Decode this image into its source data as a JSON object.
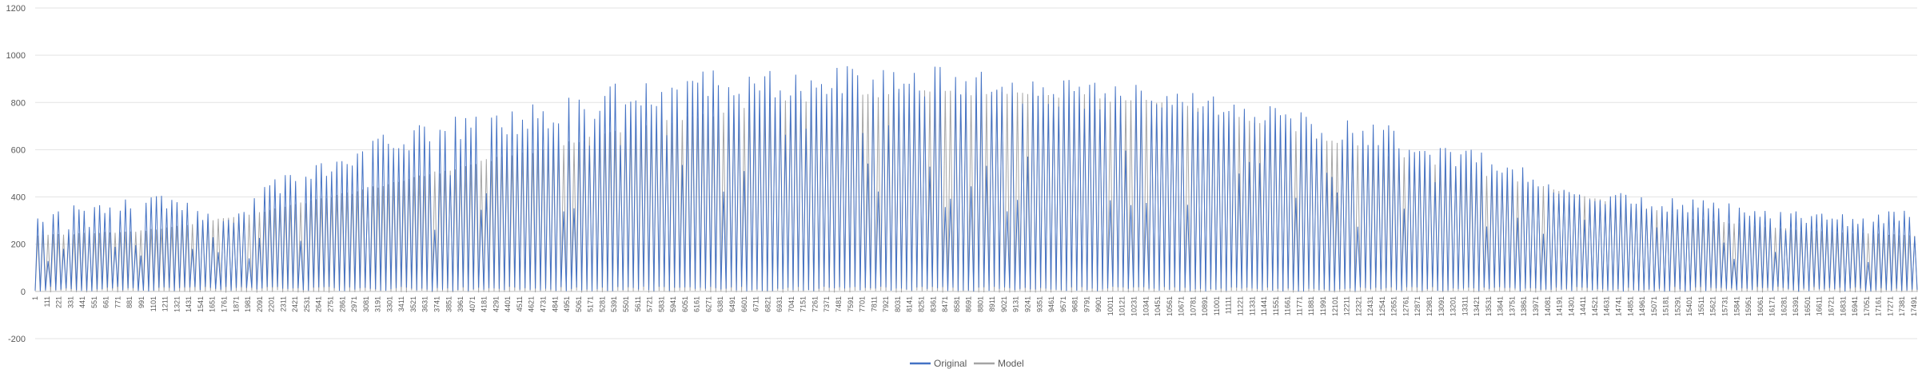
{
  "chart_data": {
    "type": "line",
    "title": "",
    "xlabel": "",
    "ylabel": "",
    "ylim": [
      -200,
      1200
    ],
    "yticks": [
      -200,
      0,
      200,
      400,
      600,
      800,
      1000,
      1200
    ],
    "grid": "horizontal",
    "legend_position": "bottom-center",
    "x_range": [
      1,
      17521
    ],
    "x_tick_step": 110,
    "x_tick_labels": [
      "1",
      "111",
      "221",
      "331",
      "441",
      "551",
      "661",
      "771",
      "881",
      "991",
      "1101",
      "1211",
      "1321",
      "1431",
      "1541",
      "1651",
      "1761",
      "1871",
      "1981",
      "2091",
      "2201",
      "2311",
      "2421",
      "2531",
      "2641",
      "2751",
      "2861",
      "2971",
      "3081",
      "3191",
      "3301",
      "3411",
      "3521",
      "3631",
      "3741",
      "3851",
      "3961",
      "4071",
      "4181",
      "4291",
      "4401",
      "4511",
      "4621",
      "4731",
      "4841",
      "4951",
      "5061",
      "5171",
      "5281",
      "5391",
      "5501",
      "5611",
      "5721",
      "5831",
      "5941",
      "6051",
      "6161",
      "6271",
      "6381",
      "6491",
      "6601",
      "6711",
      "6821",
      "6931",
      "7041",
      "7151",
      "7261",
      "7371",
      "7481",
      "7591",
      "7701",
      "7811",
      "7921",
      "8031",
      "8141",
      "8251",
      "8361",
      "8471",
      "8581",
      "8691",
      "8801",
      "8911",
      "9021",
      "9131",
      "9241",
      "9351",
      "9461",
      "9571",
      "9681",
      "9791",
      "9901",
      "10011",
      "10121",
      "10231",
      "10341",
      "10451",
      "10561",
      "10671",
      "10781",
      "10891",
      "11001",
      "11111",
      "11221",
      "11331",
      "11441",
      "11551",
      "11661",
      "11771",
      "11881",
      "11991",
      "12101",
      "12211",
      "12321",
      "12431",
      "12541",
      "12651",
      "12761",
      "12871",
      "12981",
      "13091",
      "13201",
      "13311",
      "13421",
      "13531",
      "13641",
      "13751",
      "13861",
      "13971",
      "14081",
      "14191",
      "14301",
      "14411",
      "14521",
      "14631",
      "14741",
      "14851",
      "14961",
      "15071",
      "15181",
      "15291",
      "15401",
      "15511",
      "15621",
      "15731",
      "15841",
      "15951",
      "16061",
      "16171",
      "16281",
      "16391",
      "16501",
      "16611",
      "16721",
      "16831",
      "16941",
      "17051",
      "17161",
      "17271",
      "17381",
      "17491"
    ],
    "series": [
      {
        "name": "Original",
        "color": "#4472C4",
        "description_period_points": 48,
        "daily_peak_envelope": {
          "x": [
            1,
            500,
            1200,
            1800,
            2200,
            2600,
            3000,
            3500,
            4000,
            4500,
            5000,
            5500,
            6000,
            6500,
            7000,
            7500,
            8000,
            8500,
            9000,
            9500,
            10000,
            10500,
            11000,
            11500,
            12000,
            12500,
            13000,
            13500,
            14000,
            14500,
            15000,
            15500,
            16000,
            16500,
            17000,
            17521
          ],
          "y": [
            340,
            380,
            410,
            320,
            470,
            540,
            630,
            700,
            750,
            780,
            830,
            900,
            920,
            950,
            930,
            970,
            950,
            960,
            930,
            910,
            900,
            880,
            840,
            790,
            740,
            720,
            640,
            600,
            500,
            440,
            400,
            390,
            370,
            340,
            320,
            360
          ]
        }
      },
      {
        "name": "Model",
        "color": "#A5A5A5",
        "description_period_points": 48,
        "daily_peak_envelope": {
          "x": [
            1,
            1000,
            2000,
            3000,
            4000,
            5000,
            6000,
            7000,
            8000,
            8800,
            9500,
            10500,
            11500,
            12500,
            13500,
            14500,
            15500,
            16500,
            17521
          ],
          "y": [
            240,
            260,
            330,
            430,
            540,
            640,
            740,
            810,
            850,
            855,
            845,
            810,
            720,
            600,
            500,
            400,
            310,
            260,
            240
          ]
        }
      }
    ]
  }
}
